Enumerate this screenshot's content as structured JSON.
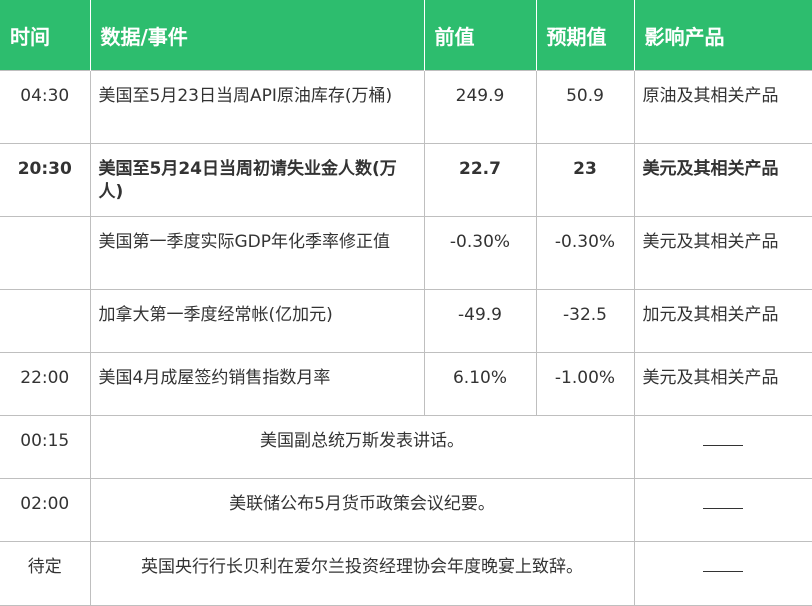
{
  "header": {
    "time": "时间",
    "event": "数据/事件",
    "previous": "前值",
    "forecast": "预期值",
    "impact": "影响产品"
  },
  "rows": [
    {
      "time": "04:30",
      "event": "美国至5月23日当周API原油库存(万桶)",
      "previous": "249.9",
      "forecast": "50.9",
      "impact": "原油及其相关产品",
      "bold": false
    },
    {
      "time": "20:30",
      "event": "美国至5月24日当周初请失业金人数(万人)",
      "previous": "22.7",
      "forecast": "23",
      "impact": "美元及其相关产品",
      "bold": true
    },
    {
      "time": "",
      "event": "美国第一季度实际GDP年化季率修正值",
      "previous": "-0.30%",
      "forecast": "-0.30%",
      "impact": "美元及其相关产品",
      "bold": false
    },
    {
      "time": "",
      "event": "加拿大第一季度经常帐(亿加元)",
      "previous": "-49.9",
      "forecast": "-32.5",
      "impact": "加元及其相关产品",
      "bold": false
    },
    {
      "time": "22:00",
      "event": "美国4月成屋签约销售指数月率",
      "previous": "6.10%",
      "forecast": "-1.00%",
      "impact": "美元及其相关产品",
      "bold": false
    }
  ],
  "events": [
    {
      "time": "00:15",
      "event": "美国副总统万斯发表讲话。"
    },
    {
      "time": "02:00",
      "event": "美联储公布5月货币政策会议纪要。"
    },
    {
      "time": "待定",
      "event": "英国央行行长贝利在爱尔兰投资经理协会年度晚宴上致辞。"
    }
  ]
}
